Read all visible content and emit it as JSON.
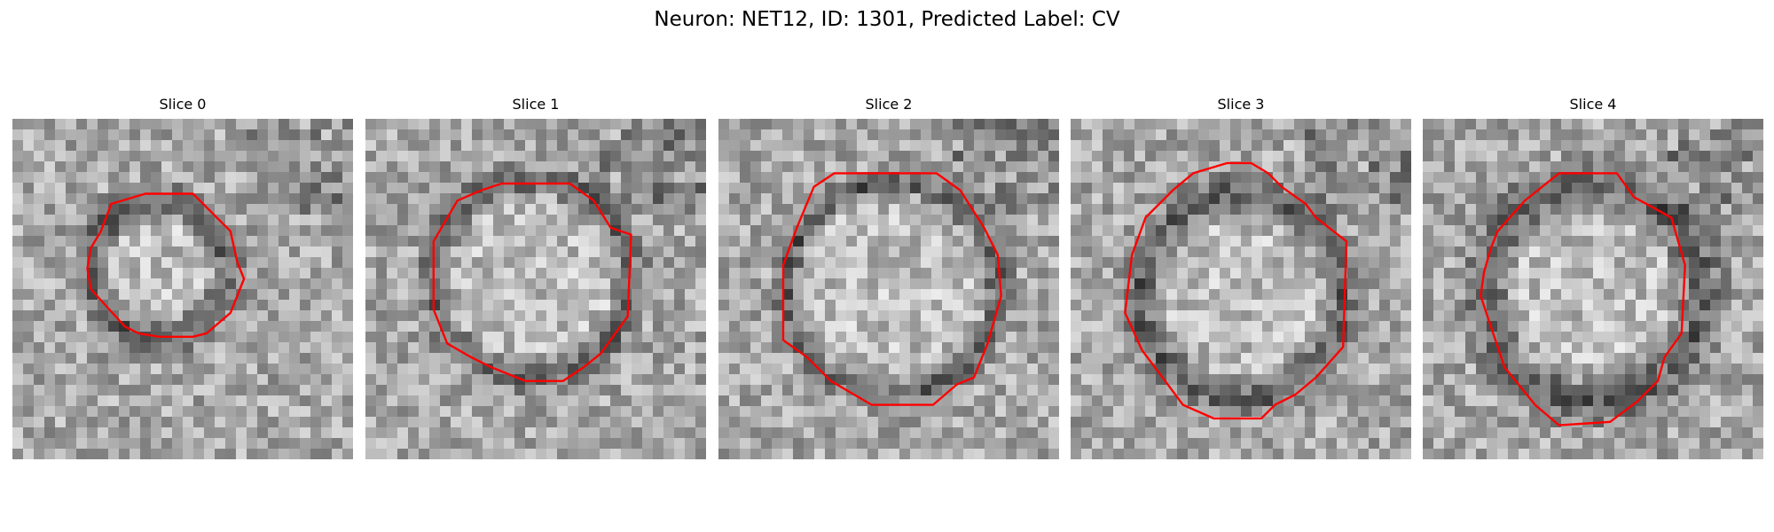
{
  "figure": {
    "title": "Neuron: NET12, ID: 1301, Predicted Label: CV"
  },
  "panels": [
    {
      "title": "Slice 0"
    },
    {
      "title": "Slice 1"
    },
    {
      "title": "Slice 2"
    },
    {
      "title": "Slice 3"
    },
    {
      "title": "Slice 4"
    }
  ],
  "colors": {
    "contour": "#ff0000",
    "background": "#ffffff"
  }
}
